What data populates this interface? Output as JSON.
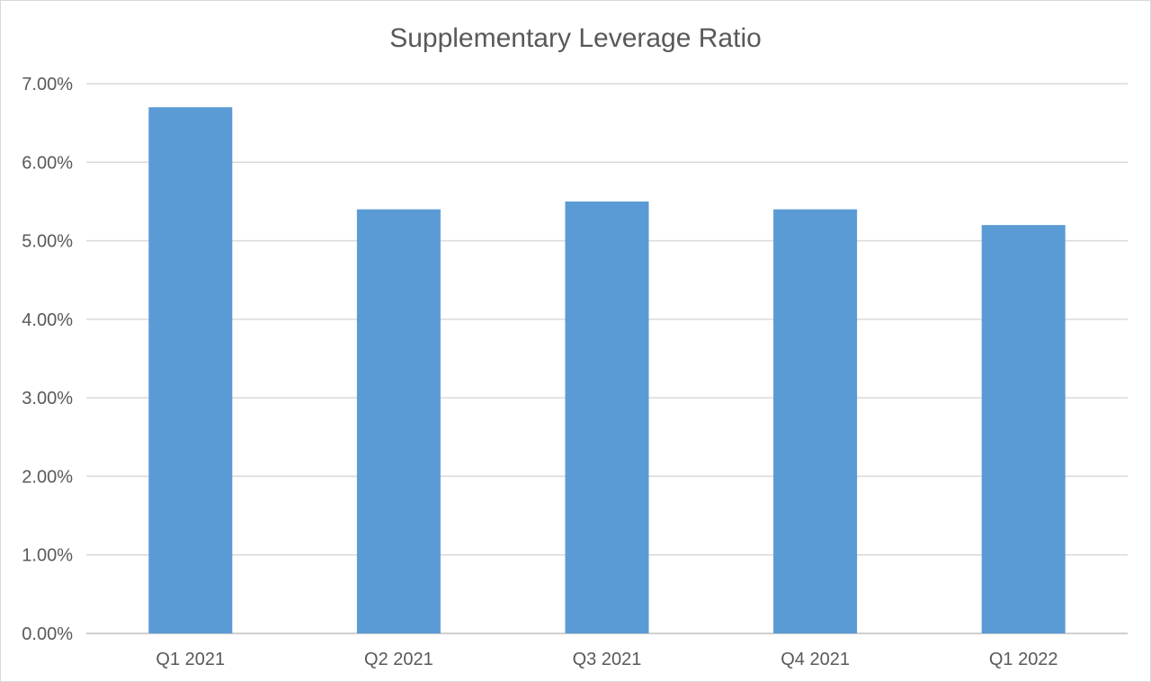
{
  "chart_data": {
    "type": "bar",
    "title": "Supplementary Leverage Ratio",
    "categories": [
      "Q1 2021",
      "Q2 2021",
      "Q3 2021",
      "Q4 2021",
      "Q1 2022"
    ],
    "values": [
      6.7,
      5.4,
      5.5,
      5.4,
      5.2
    ],
    "value_unit": "%",
    "ylim": [
      0,
      7
    ],
    "yticks": [
      "0.00%",
      "1.00%",
      "2.00%",
      "3.00%",
      "4.00%",
      "5.00%",
      "6.00%",
      "7.00%"
    ],
    "xlabel": "",
    "ylabel": "",
    "grid": true,
    "legend": "none",
    "bar_color": "#5b9bd5"
  }
}
